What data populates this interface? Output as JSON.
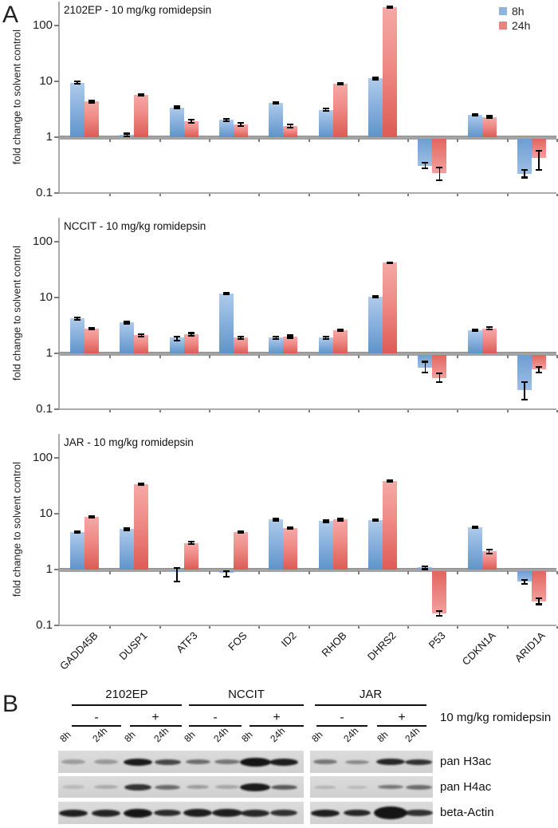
{
  "panels": {
    "a_label": "A",
    "b_label": "B"
  },
  "ylabel": "fold change to solvent control",
  "y_ticks": [
    "100",
    "10",
    "1",
    "0.1"
  ],
  "legend": [
    {
      "label": "8h",
      "color": "#8fb4de"
    },
    {
      "label": "24h",
      "color": "#ee827e"
    }
  ],
  "colors": {
    "bar_blue": "#6f9fd0",
    "bar_red": "#e8736e",
    "axis_gray": "#a3a3a3"
  },
  "genes": [
    "GADD45B",
    "DUSP1",
    "ATF3",
    "FOS",
    "ID2",
    "RHOB",
    "DHRS2",
    "P53",
    "CDKN1A",
    "ARID1A"
  ],
  "chart_data": [
    {
      "type": "bar",
      "title": "2102EP - 10 mg/kg romidepsin",
      "categories": [
        "GADD45B",
        "DUSP1",
        "ATF3",
        "FOS",
        "ID2",
        "RHOB",
        "DHRS2",
        "P53",
        "CDKN1A",
        "ARID1A"
      ],
      "yscale": "log",
      "ylim": [
        0.1,
        280
      ],
      "yticks": [
        100,
        10,
        1,
        0.1
      ],
      "ylabel": "fold change to solvent control",
      "legend_position": "top-right",
      "series": [
        {
          "name": "8h",
          "values": [
            9.5,
            1.1,
            3.4,
            2.05,
            4.1,
            3.1,
            11.3,
            0.31,
            2.5,
            0.22
          ],
          "err_lo": [
            9.1,
            1.05,
            3.25,
            1.95,
            3.95,
            2.95,
            10.9,
            0.28,
            2.42,
            0.19
          ],
          "err_hi": [
            9.9,
            1.16,
            3.55,
            2.15,
            4.25,
            3.25,
            11.7,
            0.35,
            2.58,
            0.26
          ]
        },
        {
          "name": "24h",
          "values": [
            4.4,
            5.7,
            1.95,
            1.7,
            1.6,
            9.1,
            213,
            0.23,
            2.3,
            0.42
          ],
          "err_lo": [
            4.2,
            5.5,
            1.83,
            1.6,
            1.5,
            8.8,
            207,
            0.17,
            2.2,
            0.26
          ],
          "err_hi": [
            4.6,
            5.9,
            2.07,
            1.8,
            1.7,
            9.4,
            219,
            0.29,
            2.4,
            0.58
          ]
        }
      ]
    },
    {
      "type": "bar",
      "title": "NCCIT - 10 mg/kg romidepsin",
      "categories": [
        "GADD45B",
        "DUSP1",
        "ATF3",
        "FOS",
        "ID2",
        "RHOB",
        "DHRS2",
        "P53",
        "CDKN1A",
        "ARID1A"
      ],
      "yscale": "log",
      "ylim": [
        0.1,
        280
      ],
      "yticks": [
        100,
        10,
        1,
        0.1
      ],
      "ylabel": "fold change to solvent control",
      "series": [
        {
          "name": "8h",
          "values": [
            4.2,
            3.6,
            1.9,
            11.8,
            1.9,
            1.9,
            10.3,
            0.56,
            2.6,
            0.22
          ],
          "err_lo": [
            4.0,
            3.45,
            1.72,
            11.4,
            1.82,
            1.8,
            9.9,
            0.45,
            2.5,
            0.15
          ],
          "err_hi": [
            4.4,
            3.75,
            2.0,
            12.2,
            1.98,
            2.0,
            10.7,
            0.71,
            2.7,
            0.31
          ]
        },
        {
          "name": "24h",
          "values": [
            2.8,
            2.1,
            2.2,
            1.9,
            2.0,
            2.6,
            42,
            0.36,
            2.8,
            0.52
          ],
          "err_lo": [
            2.7,
            2.0,
            2.08,
            1.8,
            1.9,
            2.5,
            41,
            0.31,
            2.68,
            0.46
          ],
          "err_hi": [
            2.9,
            2.2,
            2.32,
            2.0,
            2.1,
            2.7,
            43,
            0.44,
            2.95,
            0.58
          ]
        }
      ]
    },
    {
      "type": "bar",
      "title": "JAR - 10 mg/kg romidepsin",
      "categories": [
        "GADD45B",
        "DUSP1",
        "ATF3",
        "FOS",
        "ID2",
        "RHOB",
        "DHRS2",
        "P53",
        "CDKN1A",
        "ARID1A"
      ],
      "yscale": "log",
      "ylim": [
        0.1,
        280
      ],
      "yticks": [
        100,
        10,
        1,
        0.1
      ],
      "ylabel": "fold change to solvent control",
      "series": [
        {
          "name": "8h",
          "values": [
            4.7,
            5.3,
            0.93,
            0.88,
            7.9,
            7.4,
            7.7,
            1.1,
            5.7,
            0.61
          ],
          "err_lo": [
            4.5,
            5.1,
            0.62,
            0.74,
            7.6,
            7.1,
            7.4,
            1.02,
            5.5,
            0.55
          ],
          "err_hi": [
            4.9,
            5.5,
            1.07,
            0.95,
            8.2,
            7.7,
            8.0,
            1.15,
            5.9,
            0.66
          ]
        },
        {
          "name": "24h",
          "values": [
            8.8,
            34,
            3.0,
            4.7,
            5.5,
            7.9,
            39,
            0.165,
            2.1,
            0.27
          ],
          "err_lo": [
            8.5,
            33,
            2.85,
            4.5,
            5.3,
            7.6,
            38,
            0.15,
            1.95,
            0.24
          ],
          "err_hi": [
            9.1,
            35,
            3.15,
            4.9,
            5.7,
            8.2,
            40,
            0.18,
            2.3,
            0.31
          ]
        }
      ]
    }
  ],
  "panel_b": {
    "treatment_label": "10 mg/kg romidepsin",
    "cell_lines": [
      "2102EP",
      "NCCIT",
      "JAR"
    ],
    "conditions": [
      "-",
      "+"
    ],
    "timepoints": [
      "8h",
      "24h"
    ],
    "blot_rows": [
      {
        "label": "pan H3ac",
        "intensities": [
          0.3,
          0.32,
          0.97,
          0.75,
          0.55,
          0.5,
          1.0,
          0.95,
          0.5,
          0.4,
          0.9,
          0.85
        ],
        "band_w": [
          30,
          30,
          36,
          33,
          31,
          32,
          39,
          36,
          30,
          30,
          36,
          34
        ],
        "band_h": [
          6,
          6,
          9,
          7,
          6,
          6,
          11,
          9,
          6,
          5,
          8,
          7
        ]
      },
      {
        "label": "pan H4ac",
        "intensities": [
          0.15,
          0.22,
          0.85,
          0.55,
          0.3,
          0.25,
          0.97,
          0.65,
          0.18,
          0.15,
          0.5,
          0.55
        ],
        "band_w": [
          28,
          30,
          34,
          32,
          28,
          30,
          38,
          33,
          28,
          26,
          32,
          33
        ],
        "band_h": [
          5,
          5,
          8,
          6,
          5,
          5,
          10,
          6,
          4,
          4,
          5,
          6
        ]
      },
      {
        "label": "beta-Actin",
        "intensities": [
          0.95,
          0.92,
          1.0,
          0.88,
          0.95,
          0.95,
          0.9,
          0.85,
          0.95,
          0.9,
          1.0,
          0.85
        ],
        "band_w": [
          36,
          36,
          36,
          34,
          36,
          38,
          36,
          34,
          36,
          34,
          42,
          36
        ],
        "band_h": [
          9,
          9,
          11,
          8,
          10,
          10,
          9,
          8,
          9,
          8,
          16,
          8
        ]
      }
    ]
  }
}
